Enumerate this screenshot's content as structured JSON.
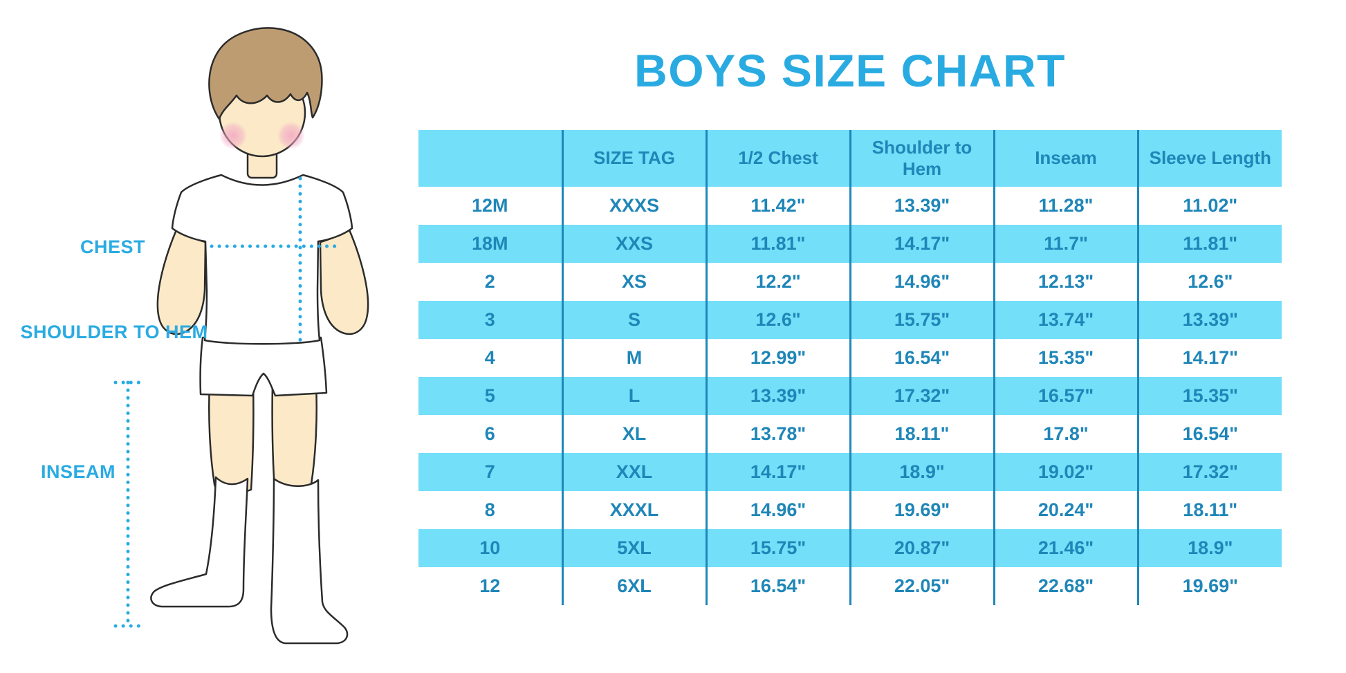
{
  "chart_data": {
    "type": "table",
    "title": "BOYS SIZE CHART",
    "columns": [
      "",
      "SIZE TAG",
      "1/2 Chest",
      "Shoulder to Hem",
      "Inseam",
      "Sleeve Length"
    ],
    "rows": [
      [
        "12M",
        "XXXS",
        "11.42\"",
        "13.39\"",
        "11.28\"",
        "11.02\""
      ],
      [
        "18M",
        "XXS",
        "11.81\"",
        "14.17\"",
        "11.7\"",
        "11.81\""
      ],
      [
        "2",
        "XS",
        "12.2\"",
        "14.96\"",
        "12.13\"",
        "12.6\""
      ],
      [
        "3",
        "S",
        "12.6\"",
        "15.75\"",
        "13.74\"",
        "13.39\""
      ],
      [
        "4",
        "M",
        "12.99\"",
        "16.54\"",
        "15.35\"",
        "14.17\""
      ],
      [
        "5",
        "L",
        "13.39\"",
        "17.32\"",
        "16.57\"",
        "15.35\""
      ],
      [
        "6",
        "XL",
        "13.78\"",
        "18.11\"",
        "17.8\"",
        "16.54\""
      ],
      [
        "7",
        "XXL",
        "14.17\"",
        "18.9\"",
        "19.02\"",
        "17.32\""
      ],
      [
        "8",
        "XXXL",
        "14.96\"",
        "19.69\"",
        "20.24\"",
        "18.11\""
      ],
      [
        "10",
        "5XL",
        "15.75\"",
        "20.87\"",
        "21.46\"",
        "18.9\""
      ],
      [
        "12",
        "6XL",
        "16.54\"",
        "22.05\"",
        "22.68\"",
        "19.69\""
      ]
    ],
    "stripe_pattern": "alternating rows, 2nd/4th/6th/8th/10th highlighted",
    "units": "inches"
  },
  "illustration": {
    "labels": {
      "chest": "CHEST",
      "shoulder_to_hem": "SHOULDER TO HEM",
      "inseam": "INSEAM"
    }
  },
  "colors": {
    "accent_blue": "#29ABE2",
    "table_stripe": "#73DFF8",
    "table_text": "#1F86B8",
    "grid_line": "#1E87B9",
    "skin": "#FBE9C8",
    "hair": "#BE9C72",
    "cheek": "#F2A7C4"
  }
}
